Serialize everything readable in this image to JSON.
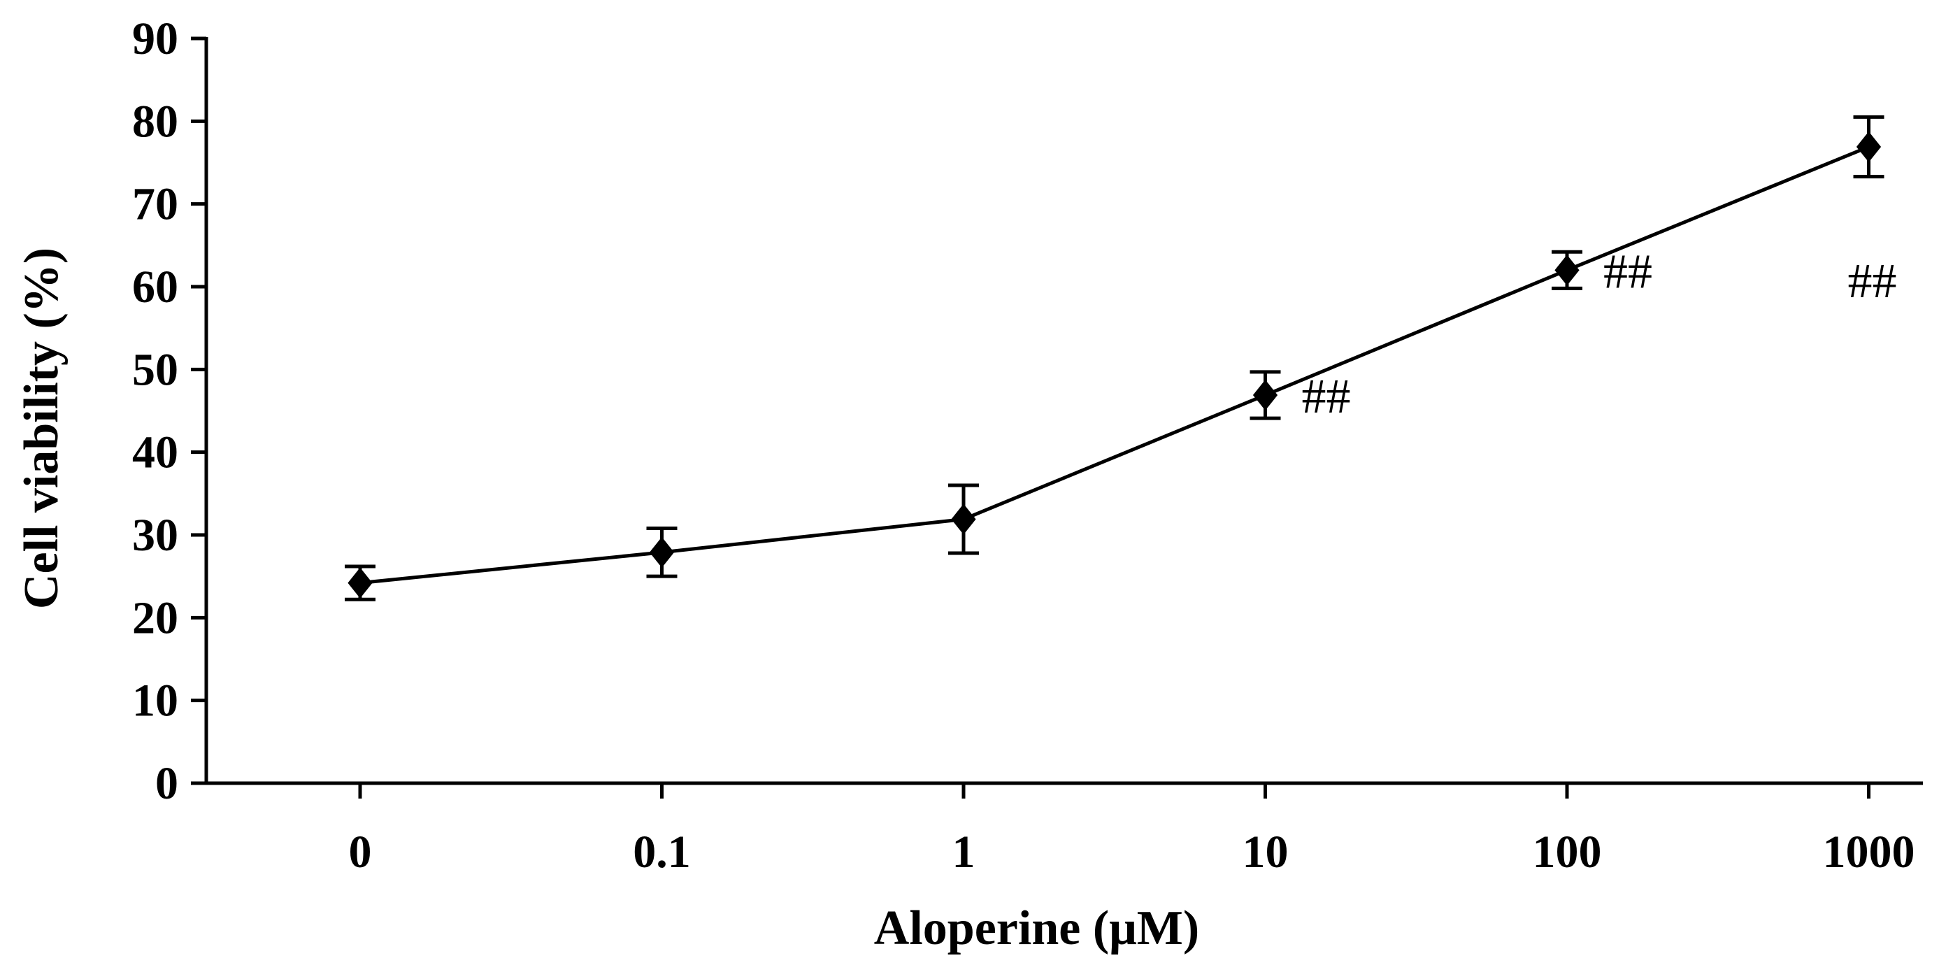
{
  "chart_data": {
    "type": "line",
    "title": "",
    "xlabel": "Aloperine (μM)",
    "ylabel": "Cell viability (%)",
    "x_scale": "categorical-log",
    "categories": [
      "0",
      "0.1",
      "1",
      "10",
      "100",
      "1000"
    ],
    "ylim": [
      0,
      90
    ],
    "yticks": [
      "0",
      "10",
      "20",
      "30",
      "40",
      "50",
      "60",
      "70",
      "80",
      "90"
    ],
    "grid": false,
    "legend": "none",
    "series": [
      {
        "values": [
          24.2,
          27.9,
          31.9,
          46.9,
          62.0,
          76.9
        ],
        "error": [
          2.0,
          2.9,
          4.1,
          2.8,
          2.2,
          3.6
        ],
        "marker": "diamond",
        "color": "#000000"
      }
    ],
    "annotations": [
      {
        "category": "10",
        "text": "##",
        "position": "right"
      },
      {
        "category": "100",
        "text": "##",
        "position": "right"
      },
      {
        "category": "1000",
        "text": "##",
        "position": "below"
      }
    ]
  }
}
